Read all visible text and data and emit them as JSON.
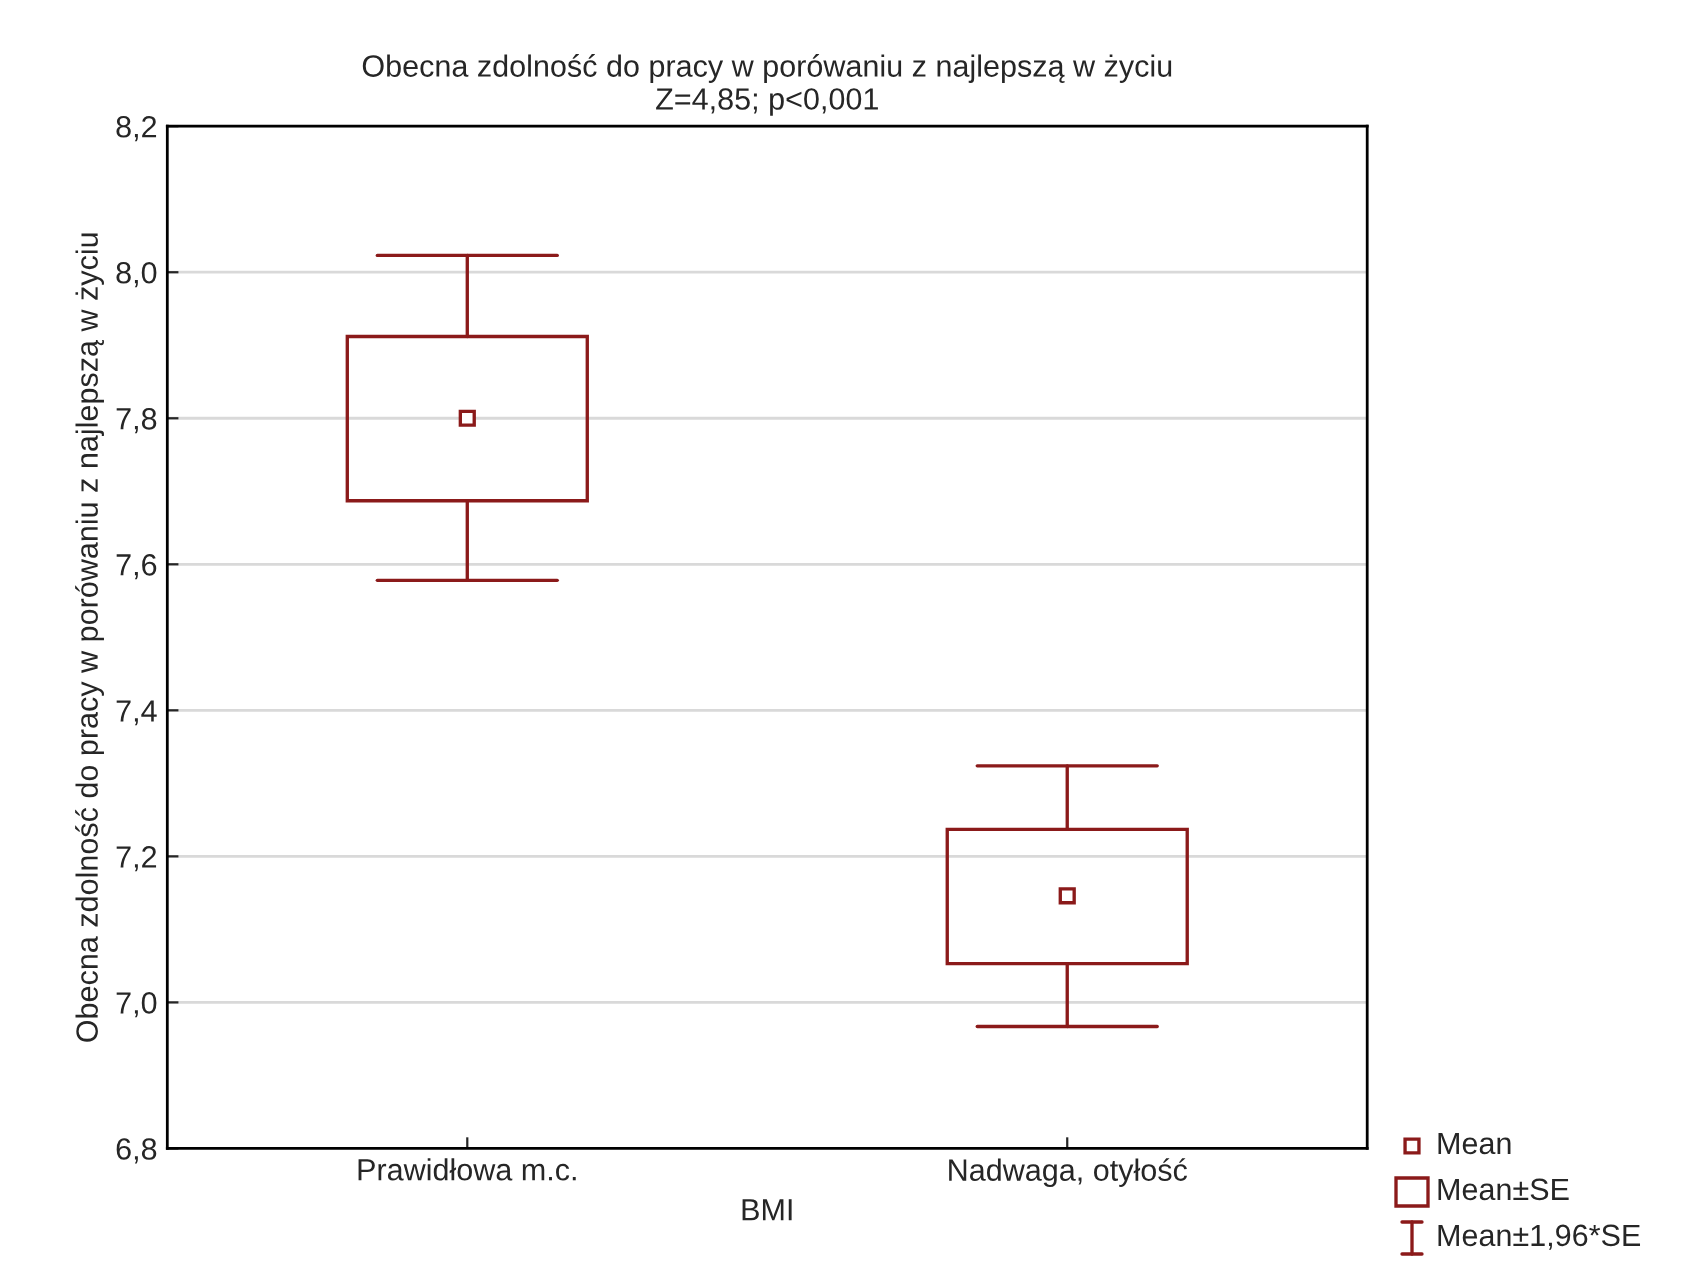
{
  "chart_data": {
    "type": "box",
    "title": "Obecna zdolność do pracy w porówaniu z najlepszą w życiu",
    "subtitle": "Z=4,85; p<0,001",
    "xlabel": "BMI",
    "ylabel": "Obecna zdolność do pracy w porówaniu z najlepszą w życiu",
    "categories": [
      "Prawidłowa m.c.",
      "Nadwaga, otyłość"
    ],
    "boxes": [
      {
        "low": 7.578,
        "q1": 7.687,
        "median": 7.8,
        "q3": 7.912,
        "high": 8.023
      },
      {
        "low": 6.967,
        "q1": 7.053,
        "median": 7.146,
        "q3": 7.237,
        "high": 7.324
      }
    ],
    "color": "#8b1a1a",
    "ylim": [
      6.8,
      8.2
    ],
    "yticks": [
      {
        "value": 6.8,
        "label": "6,8"
      },
      {
        "value": 7.0,
        "label": "7,0"
      },
      {
        "value": 7.2,
        "label": "7,2"
      },
      {
        "value": 7.4,
        "label": "7,4"
      },
      {
        "value": 7.6,
        "label": "7,6"
      },
      {
        "value": 7.8,
        "label": "7,8"
      },
      {
        "value": 8.0,
        "label": "8,0"
      },
      {
        "value": 8.2,
        "label": "8,2"
      }
    ],
    "grid": "y",
    "marker": "square",
    "annotations": [
      "Mean",
      "Mean±SE",
      "Mean±1,96*SE"
    ]
  }
}
